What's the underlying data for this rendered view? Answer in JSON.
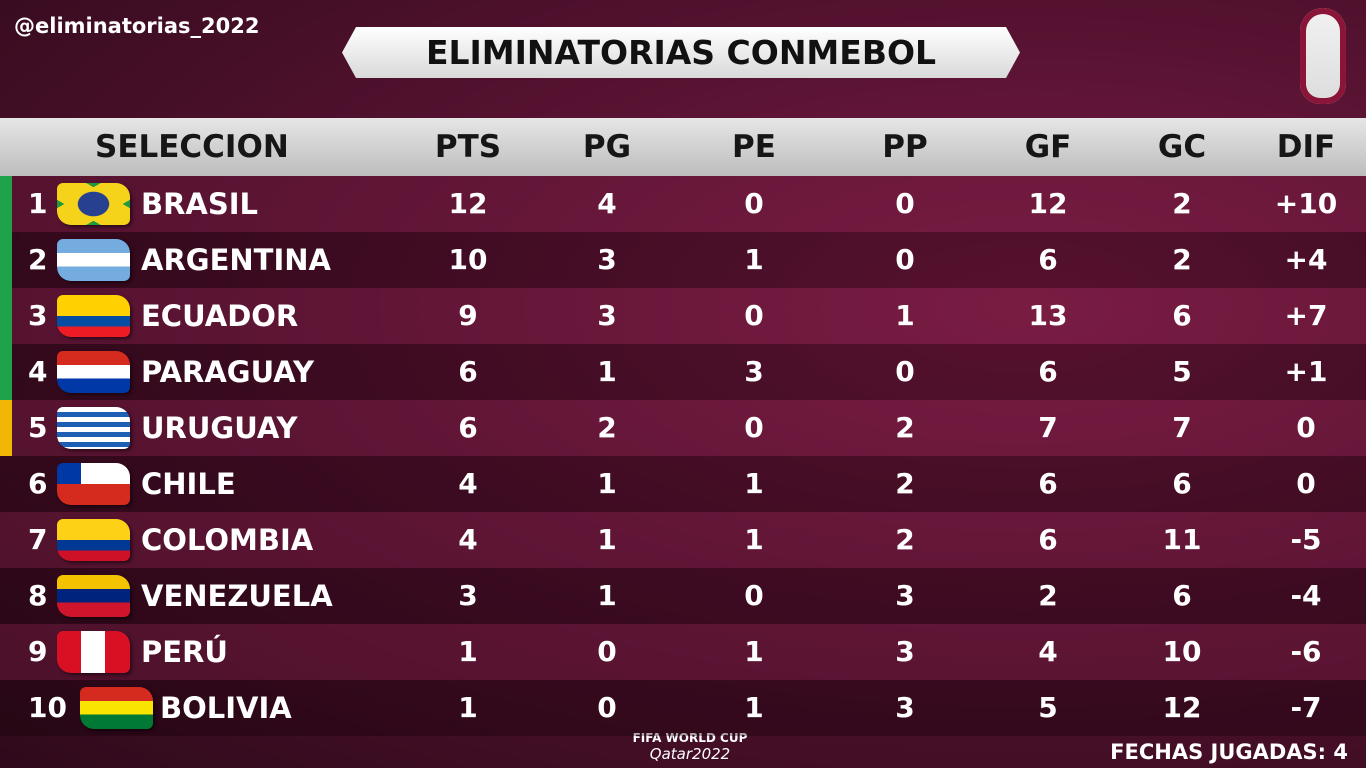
{
  "handle": "@eliminatorias_2022",
  "title": "ELIMINATORIAS CONMEBOL",
  "table": {
    "header": [
      "SELECCION",
      "PTS",
      "PG",
      "PE",
      "PP",
      "GF",
      "GC",
      "DIF"
    ],
    "rows": [
      {
        "rank": 1,
        "team": "BRASIL",
        "stats": [
          12,
          4,
          0,
          0,
          12,
          2,
          "+10"
        ]
      },
      {
        "rank": 2,
        "team": "ARGENTINA",
        "stats": [
          10,
          3,
          1,
          0,
          6,
          2,
          "+4"
        ]
      },
      {
        "rank": 3,
        "team": "ECUADOR",
        "stats": [
          9,
          3,
          0,
          1,
          13,
          6,
          "+7"
        ]
      },
      {
        "rank": 4,
        "team": "PARAGUAY",
        "stats": [
          6,
          1,
          3,
          0,
          6,
          5,
          "+1"
        ]
      },
      {
        "rank": 5,
        "team": "URUGUAY",
        "stats": [
          6,
          2,
          0,
          2,
          7,
          7,
          0
        ]
      },
      {
        "rank": 6,
        "team": "CHILE",
        "stats": [
          4,
          1,
          1,
          2,
          6,
          6,
          0
        ]
      },
      {
        "rank": 7,
        "team": "COLOMBIA",
        "stats": [
          4,
          1,
          1,
          2,
          6,
          11,
          "-5"
        ]
      },
      {
        "rank": 8,
        "team": "VENEZUELA",
        "stats": [
          3,
          1,
          0,
          3,
          2,
          6,
          "-4"
        ]
      },
      {
        "rank": 9,
        "team": "PERÚ",
        "stats": [
          1,
          0,
          1,
          3,
          4,
          10,
          "-6"
        ]
      },
      {
        "rank": 10,
        "team": "BOLIVIA",
        "stats": [
          1,
          0,
          1,
          3,
          5,
          12,
          "-7"
        ]
      }
    ]
  },
  "logo": {
    "line1": "FIFA WORLD CUP",
    "line2": "Qatar2022"
  },
  "footer": "FECHAS JUGADAS: 4"
}
